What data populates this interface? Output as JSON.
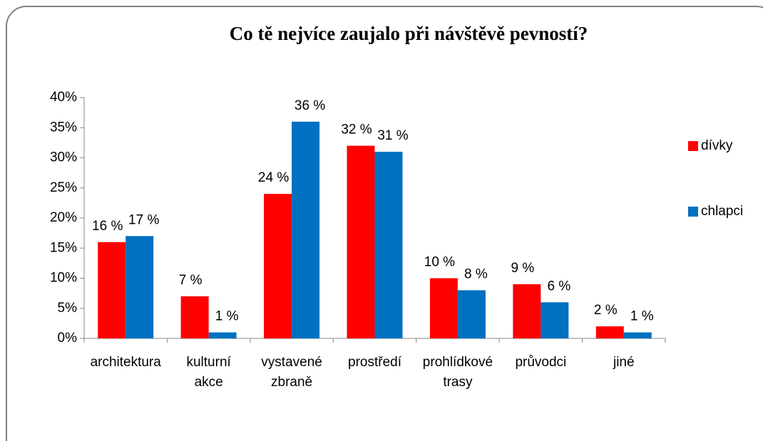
{
  "chart_data": {
    "type": "bar",
    "title": "Co tě nejvíce zaujalo při návštěvě pevností?",
    "categories": [
      "architektura",
      "kulturní akce",
      "vystavené zbraně",
      "prostředí",
      "prohlídkové trasy",
      "průvodci",
      "jiné"
    ],
    "series": [
      {
        "name": "dívky",
        "color": "#ff0000",
        "values": [
          16,
          7,
          24,
          32,
          10,
          9,
          2
        ],
        "value_labels": [
          "16 %",
          "7 %",
          "24 %",
          "32 %",
          "10 %",
          "9 %",
          "2 %"
        ]
      },
      {
        "name": "chlapci",
        "color": "#0070c0",
        "values": [
          17,
          1,
          36,
          31,
          8,
          6,
          1
        ],
        "value_labels": [
          "17 %",
          "1 %",
          "36 %",
          "31 %",
          "8 %",
          "6 %",
          "1 %"
        ]
      }
    ],
    "ylim": [
      0,
      40
    ],
    "yticks": [
      {
        "value": 0,
        "label": "0%"
      },
      {
        "value": 5,
        "label": "5%"
      },
      {
        "value": 10,
        "label": "10%"
      },
      {
        "value": 15,
        "label": "15%"
      },
      {
        "value": 20,
        "label": "20%"
      },
      {
        "value": 25,
        "label": "25%"
      },
      {
        "value": 30,
        "label": "30%"
      },
      {
        "value": 35,
        "label": "35%"
      },
      {
        "value": 40,
        "label": "40%"
      }
    ],
    "legend": "right"
  }
}
